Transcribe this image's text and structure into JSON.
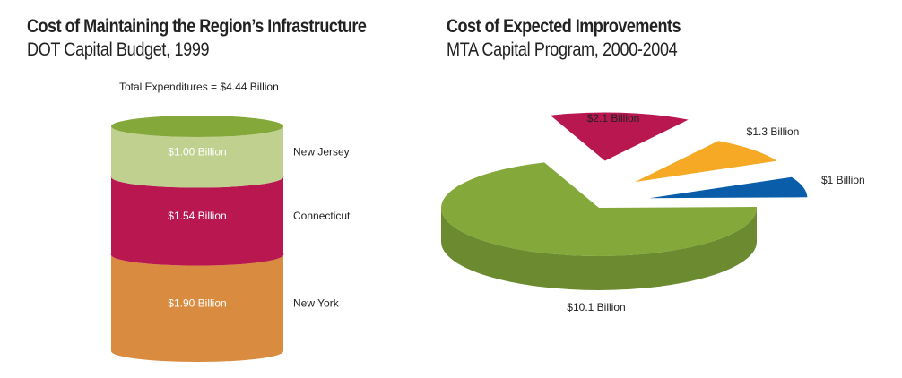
{
  "chart_data": [
    {
      "type": "stacked-cylinder",
      "title": "Cost of Maintaining the Region’s Infrastructure",
      "subtitle": "DOT Capital Budget, 1999",
      "note": "Total Expenditures = $4.44 Billion",
      "unit": "Billion USD",
      "total": 4.44,
      "series": [
        {
          "name": "New York",
          "value": 1.9,
          "value_label": "$1.90 Billion",
          "color": "#D98B3F"
        },
        {
          "name": "Connecticut",
          "value": 1.54,
          "value_label": "$1.54 Billion",
          "color": "#B8184F"
        },
        {
          "name": "New Jersey",
          "value": 1.0,
          "value_label": "$1.00 Billion",
          "color": "#BFD08F"
        }
      ],
      "top_color": "#84A83A"
    },
    {
      "type": "pie",
      "title": "Cost of Expected Improvements",
      "subtitle": "MTA Capital Program, 2000-2004",
      "unit": "Billion USD",
      "slices": [
        {
          "value": 10.1,
          "label": "$10.1 Billion",
          "color": "#84A83A"
        },
        {
          "value": 2.1,
          "label": "$2.1 Billion",
          "color": "#B8184F"
        },
        {
          "value": 1.3,
          "label": "$1.3 Billion",
          "color": "#F6A924"
        },
        {
          "value": 1.0,
          "label": "$1 Billion",
          "color": "#0A5DA8"
        }
      ]
    }
  ]
}
